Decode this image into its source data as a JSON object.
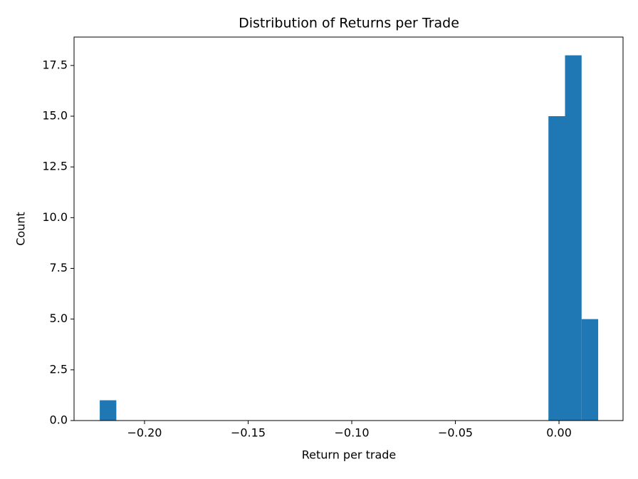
{
  "chart_data": {
    "type": "histogram",
    "title": "Distribution of Returns per Trade",
    "x_label": "Return per trade",
    "y_label": "Count",
    "color": "#1f77b4",
    "bins": [
      -0.2216,
      -0.2136,
      -0.2056,
      -0.1975,
      -0.1895,
      -0.1815,
      -0.1735,
      -0.1655,
      -0.1575,
      -0.1494,
      -0.1414,
      -0.1334,
      -0.1254,
      -0.1174,
      -0.1094,
      -0.1013,
      -0.0933,
      -0.0853,
      -0.0773,
      -0.0693,
      -0.0613,
      -0.0532,
      -0.0452,
      -0.0372,
      -0.0292,
      -0.0212,
      -0.0132,
      -0.0051,
      0.0029,
      0.0109,
      0.0189
    ],
    "values": [
      1,
      0,
      0,
      0,
      0,
      0,
      0,
      0,
      0,
      0,
      0,
      0,
      0,
      0,
      0,
      0,
      0,
      0,
      0,
      0,
      0,
      0,
      0,
      0,
      0,
      0,
      0,
      15,
      18,
      5
    ],
    "xlim": [
      -0.234,
      0.0309
    ],
    "ylim": [
      0,
      18.9
    ],
    "xticks": [
      {
        "value": -0.2,
        "label": "−0.20"
      },
      {
        "value": -0.15,
        "label": "−0.15"
      },
      {
        "value": -0.1,
        "label": "−0.10"
      },
      {
        "value": -0.05,
        "label": "−0.05"
      },
      {
        "value": 0,
        "label": "0.00"
      }
    ],
    "yticks": [
      {
        "value": 0,
        "label": "0.0"
      },
      {
        "value": 2.5,
        "label": "2.5"
      },
      {
        "value": 5,
        "label": "5.0"
      },
      {
        "value": 7.5,
        "label": "7.5"
      },
      {
        "value": 10,
        "label": "10.0"
      },
      {
        "value": 12.5,
        "label": "12.5"
      },
      {
        "value": 15,
        "label": "15.0"
      },
      {
        "value": 17.5,
        "label": "17.5"
      }
    ]
  }
}
